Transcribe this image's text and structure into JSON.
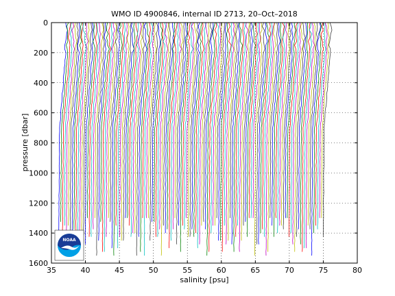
{
  "chart_data": {
    "type": "line",
    "title": "WMO ID 4900846, internal ID 2713, 20–Oct–2018",
    "xlabel": "salinity [psu]",
    "ylabel": "pressure [dbar]",
    "xlim": [
      35,
      80
    ],
    "ylim": [
      1600,
      0
    ],
    "y_reversed": true,
    "xticks": [
      35,
      40,
      45,
      50,
      55,
      60,
      65,
      70,
      75,
      80
    ],
    "yticks": [
      0,
      200,
      400,
      600,
      800,
      1000,
      1200,
      1400,
      1600
    ],
    "grid": true,
    "profile_count": 140,
    "profile_offset_first": 36.2,
    "profile_offset_last": 75.6,
    "profile_offset_step": 0.28,
    "series_colors": [
      "#0000ff",
      "#008000",
      "#ff0000",
      "#00bfbf",
      "#bf00bf",
      "#bfbf00",
      "#404040"
    ],
    "logo": {
      "text": "NOAA",
      "colors": {
        "bg": "#ffffff",
        "sky": "#1a3c96",
        "sea": "#00a0e6",
        "bird": "#ffffff"
      }
    }
  }
}
